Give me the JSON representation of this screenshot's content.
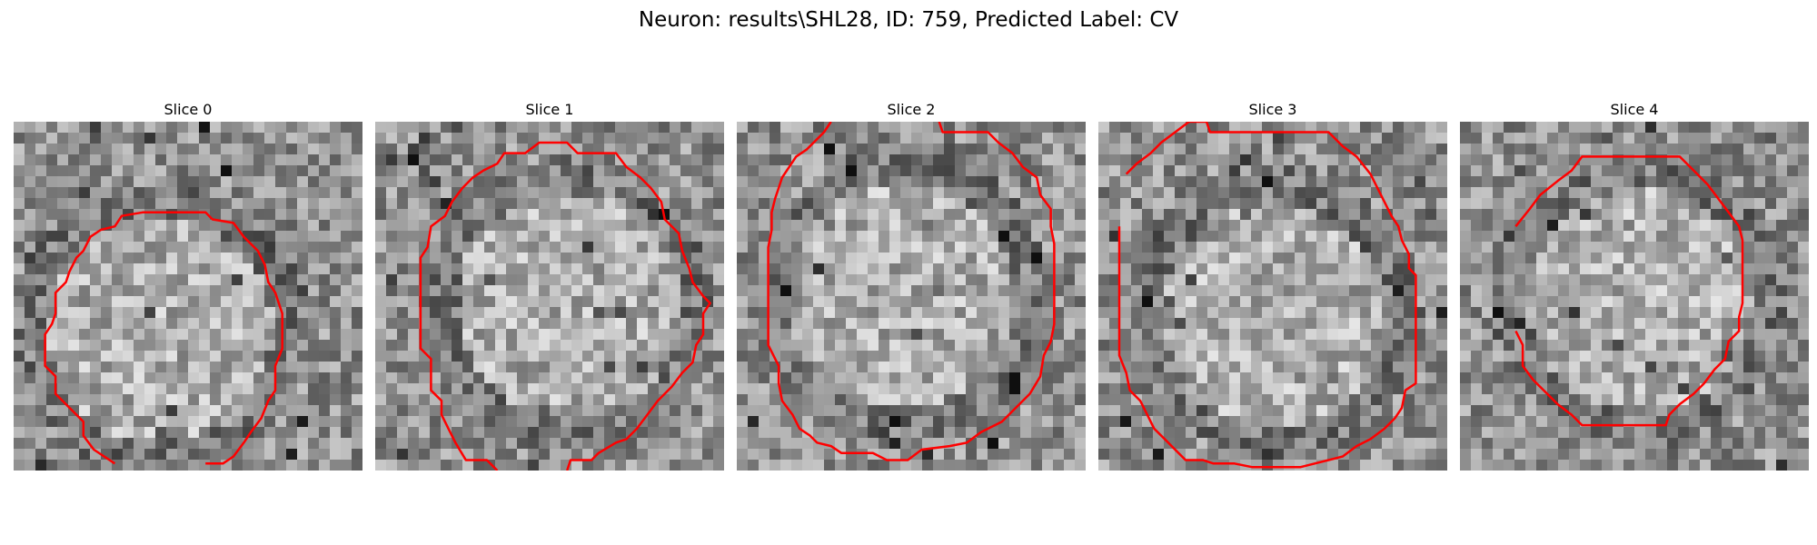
{
  "figure": {
    "title": "Neuron: results\\SHL28, ID: 759, Predicted Label: CV"
  },
  "panels": [
    {
      "title": "Slice 0",
      "contour": [
        [
          0.29,
          0.98
        ],
        [
          0.23,
          0.94
        ],
        [
          0.2,
          0.9
        ],
        [
          0.2,
          0.86
        ],
        [
          0.16,
          0.82
        ],
        [
          0.12,
          0.78
        ],
        [
          0.12,
          0.73
        ],
        [
          0.09,
          0.7
        ],
        [
          0.09,
          0.61
        ],
        [
          0.11,
          0.58
        ],
        [
          0.12,
          0.55
        ],
        [
          0.12,
          0.49
        ],
        [
          0.15,
          0.46
        ],
        [
          0.16,
          0.43
        ],
        [
          0.18,
          0.39
        ],
        [
          0.2,
          0.37
        ],
        [
          0.22,
          0.33
        ],
        [
          0.25,
          0.31
        ],
        [
          0.29,
          0.3
        ],
        [
          0.31,
          0.27
        ],
        [
          0.37,
          0.26
        ],
        [
          0.55,
          0.26
        ],
        [
          0.57,
          0.28
        ],
        [
          0.63,
          0.29
        ],
        [
          0.66,
          0.33
        ],
        [
          0.7,
          0.37
        ],
        [
          0.72,
          0.41
        ],
        [
          0.73,
          0.46
        ],
        [
          0.75,
          0.49
        ],
        [
          0.77,
          0.55
        ],
        [
          0.77,
          0.65
        ],
        [
          0.75,
          0.7
        ],
        [
          0.75,
          0.77
        ],
        [
          0.73,
          0.8
        ],
        [
          0.71,
          0.85
        ],
        [
          0.68,
          0.89
        ],
        [
          0.66,
          0.92
        ],
        [
          0.63,
          0.96
        ],
        [
          0.6,
          0.98
        ],
        [
          0.55,
          0.98
        ]
      ]
    },
    {
      "title": "Slice 1",
      "contour": [
        [
          0.35,
          1.0
        ],
        [
          0.32,
          0.97
        ],
        [
          0.26,
          0.97
        ],
        [
          0.23,
          0.92
        ],
        [
          0.21,
          0.88
        ],
        [
          0.19,
          0.84
        ],
        [
          0.19,
          0.8
        ],
        [
          0.16,
          0.77
        ],
        [
          0.16,
          0.68
        ],
        [
          0.13,
          0.65
        ],
        [
          0.13,
          0.39
        ],
        [
          0.15,
          0.36
        ],
        [
          0.16,
          0.3
        ],
        [
          0.2,
          0.27
        ],
        [
          0.22,
          0.23
        ],
        [
          0.25,
          0.19
        ],
        [
          0.28,
          0.16
        ],
        [
          0.31,
          0.14
        ],
        [
          0.35,
          0.12
        ],
        [
          0.37,
          0.09
        ],
        [
          0.43,
          0.09
        ],
        [
          0.47,
          0.06
        ],
        [
          0.55,
          0.06
        ],
        [
          0.58,
          0.09
        ],
        [
          0.69,
          0.09
        ],
        [
          0.72,
          0.13
        ],
        [
          0.76,
          0.16
        ],
        [
          0.79,
          0.19
        ],
        [
          0.82,
          0.23
        ],
        [
          0.83,
          0.28
        ],
        [
          0.87,
          0.32
        ],
        [
          0.88,
          0.37
        ],
        [
          0.9,
          0.42
        ],
        [
          0.91,
          0.46
        ],
        [
          0.94,
          0.5
        ],
        [
          0.96,
          0.52
        ],
        [
          0.94,
          0.55
        ],
        [
          0.94,
          0.61
        ],
        [
          0.92,
          0.64
        ],
        [
          0.91,
          0.69
        ],
        [
          0.88,
          0.72
        ],
        [
          0.85,
          0.76
        ],
        [
          0.81,
          0.8
        ],
        [
          0.78,
          0.84
        ],
        [
          0.75,
          0.88
        ],
        [
          0.72,
          0.91
        ],
        [
          0.69,
          0.92
        ],
        [
          0.64,
          0.95
        ],
        [
          0.62,
          0.97
        ],
        [
          0.56,
          0.97
        ],
        [
          0.55,
          1.0
        ]
      ]
    },
    {
      "title": "Slice 2",
      "contour": [
        [
          0.27,
          0.0
        ],
        [
          0.25,
          0.03
        ],
        [
          0.23,
          0.05
        ],
        [
          0.2,
          0.08
        ],
        [
          0.17,
          0.1
        ],
        [
          0.15,
          0.13
        ],
        [
          0.13,
          0.16
        ],
        [
          0.12,
          0.19
        ],
        [
          0.11,
          0.22
        ],
        [
          0.1,
          0.26
        ],
        [
          0.1,
          0.31
        ],
        [
          0.09,
          0.36
        ],
        [
          0.09,
          0.64
        ],
        [
          0.12,
          0.7
        ],
        [
          0.12,
          0.75
        ],
        [
          0.13,
          0.8
        ],
        [
          0.16,
          0.84
        ],
        [
          0.18,
          0.88
        ],
        [
          0.21,
          0.9
        ],
        [
          0.23,
          0.92
        ],
        [
          0.27,
          0.93
        ],
        [
          0.3,
          0.95
        ],
        [
          0.39,
          0.95
        ],
        [
          0.43,
          0.97
        ],
        [
          0.49,
          0.97
        ],
        [
          0.53,
          0.94
        ],
        [
          0.61,
          0.93
        ],
        [
          0.66,
          0.92
        ],
        [
          0.7,
          0.89
        ],
        [
          0.76,
          0.86
        ],
        [
          0.8,
          0.82
        ],
        [
          0.84,
          0.78
        ],
        [
          0.87,
          0.73
        ],
        [
          0.88,
          0.67
        ],
        [
          0.9,
          0.63
        ],
        [
          0.91,
          0.58
        ],
        [
          0.91,
          0.35
        ],
        [
          0.9,
          0.3
        ],
        [
          0.9,
          0.25
        ],
        [
          0.87,
          0.21
        ],
        [
          0.86,
          0.16
        ],
        [
          0.82,
          0.13
        ],
        [
          0.79,
          0.09
        ],
        [
          0.75,
          0.06
        ],
        [
          0.72,
          0.03
        ],
        [
          0.59,
          0.03
        ],
        [
          0.58,
          0.0
        ]
      ]
    },
    {
      "title": "Slice 3",
      "contour": [
        [
          0.08,
          0.15
        ],
        [
          0.11,
          0.12
        ],
        [
          0.15,
          0.09
        ],
        [
          0.18,
          0.06
        ],
        [
          0.22,
          0.03
        ],
        [
          0.26,
          0.0
        ],
        [
          0.31,
          0.0
        ],
        [
          0.32,
          0.03
        ],
        [
          0.66,
          0.03
        ],
        [
          0.7,
          0.07
        ],
        [
          0.74,
          0.1
        ],
        [
          0.78,
          0.15
        ],
        [
          0.8,
          0.19
        ],
        [
          0.82,
          0.23
        ],
        [
          0.84,
          0.27
        ],
        [
          0.86,
          0.3
        ],
        [
          0.87,
          0.34
        ],
        [
          0.89,
          0.38
        ],
        [
          0.89,
          0.42
        ],
        [
          0.91,
          0.44
        ],
        [
          0.91,
          0.75
        ],
        [
          0.88,
          0.77
        ],
        [
          0.87,
          0.82
        ],
        [
          0.85,
          0.85
        ],
        [
          0.82,
          0.88
        ],
        [
          0.78,
          0.91
        ],
        [
          0.74,
          0.93
        ],
        [
          0.7,
          0.96
        ],
        [
          0.66,
          0.97
        ],
        [
          0.62,
          0.98
        ],
        [
          0.58,
          0.99
        ],
        [
          0.44,
          0.99
        ],
        [
          0.39,
          0.98
        ],
        [
          0.33,
          0.98
        ],
        [
          0.3,
          0.97
        ],
        [
          0.25,
          0.97
        ],
        [
          0.22,
          0.94
        ],
        [
          0.19,
          0.91
        ],
        [
          0.16,
          0.88
        ],
        [
          0.14,
          0.84
        ],
        [
          0.12,
          0.8
        ],
        [
          0.09,
          0.77
        ],
        [
          0.08,
          0.72
        ],
        [
          0.06,
          0.67
        ],
        [
          0.06,
          0.3
        ]
      ]
    },
    {
      "title": "Slice 4",
      "contour": [
        [
          0.16,
          0.3
        ],
        [
          0.2,
          0.25
        ],
        [
          0.23,
          0.21
        ],
        [
          0.28,
          0.17
        ],
        [
          0.32,
          0.14
        ],
        [
          0.35,
          0.1
        ],
        [
          0.63,
          0.1
        ],
        [
          0.67,
          0.14
        ],
        [
          0.71,
          0.18
        ],
        [
          0.74,
          0.22
        ],
        [
          0.77,
          0.26
        ],
        [
          0.8,
          0.3
        ],
        [
          0.81,
          0.34
        ],
        [
          0.81,
          0.52
        ],
        [
          0.8,
          0.56
        ],
        [
          0.8,
          0.6
        ],
        [
          0.77,
          0.63
        ],
        [
          0.76,
          0.68
        ],
        [
          0.73,
          0.71
        ],
        [
          0.7,
          0.75
        ],
        [
          0.67,
          0.78
        ],
        [
          0.63,
          0.81
        ],
        [
          0.6,
          0.84
        ],
        [
          0.59,
          0.87
        ],
        [
          0.35,
          0.87
        ],
        [
          0.32,
          0.84
        ],
        [
          0.28,
          0.81
        ],
        [
          0.25,
          0.78
        ],
        [
          0.21,
          0.74
        ],
        [
          0.18,
          0.7
        ],
        [
          0.18,
          0.64
        ],
        [
          0.16,
          0.6
        ]
      ]
    }
  ]
}
